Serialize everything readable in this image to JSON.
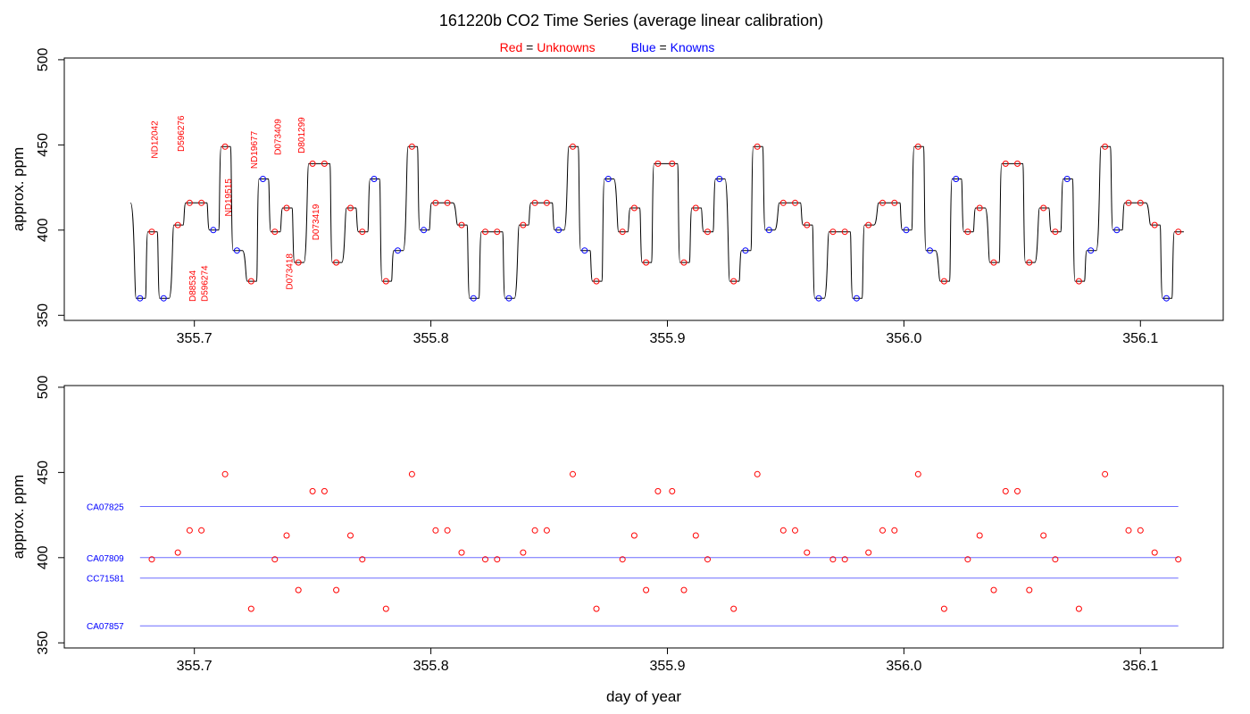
{
  "colors": {
    "unknown": "#ff0000",
    "known": "#0000ff",
    "trace": "#000000",
    "std_line": "#6b6bff"
  },
  "chart_data": [
    {
      "type": "line",
      "title": "161220b   CO2 Time Series (average linear calibration)",
      "legend": {
        "unknowns_color_word": "Red",
        "unknowns_eq": " = ",
        "unknowns_word": "Unknowns",
        "knowns_color_word": "Blue",
        "knowns_eq": " = ",
        "knowns_word": "Knowns",
        "placement": "top-center"
      },
      "ylabel": "approx. ppm",
      "xlim": [
        355.645,
        356.135
      ],
      "ylim": [
        347,
        501
      ],
      "xticks": [
        355.7,
        355.8,
        355.9,
        356.0,
        356.1
      ],
      "xtick_labels": [
        "355.7",
        "355.8",
        "355.9",
        "356.0",
        "356.1"
      ],
      "yticks": [
        350,
        400,
        450,
        500
      ],
      "ytick_labels": [
        "350",
        "400",
        "450",
        "500"
      ],
      "trace_start": 355.673,
      "trace_start_value": 416,
      "segment_width": 0.0052,
      "series": [
        {
          "kind": "unknown",
          "points": [
            {
              "x": 355.682,
              "y": 399
            },
            {
              "x": 355.693,
              "y": 403
            },
            {
              "x": 355.698,
              "y": 416
            },
            {
              "x": 355.703,
              "y": 416
            },
            {
              "x": 355.713,
              "y": 449
            },
            {
              "x": 355.724,
              "y": 370
            },
            {
              "x": 355.734,
              "y": 399
            },
            {
              "x": 355.739,
              "y": 413
            },
            {
              "x": 355.744,
              "y": 381
            },
            {
              "x": 355.75,
              "y": 439
            },
            {
              "x": 355.755,
              "y": 439
            },
            {
              "x": 355.76,
              "y": 381
            },
            {
              "x": 355.766,
              "y": 413
            },
            {
              "x": 355.771,
              "y": 399
            },
            {
              "x": 355.781,
              "y": 370
            },
            {
              "x": 355.792,
              "y": 449
            },
            {
              "x": 355.802,
              "y": 416
            },
            {
              "x": 355.807,
              "y": 416
            },
            {
              "x": 355.813,
              "y": 403
            },
            {
              "x": 355.823,
              "y": 399
            },
            {
              "x": 355.828,
              "y": 399
            },
            {
              "x": 355.839,
              "y": 403
            },
            {
              "x": 355.844,
              "y": 416
            },
            {
              "x": 355.849,
              "y": 416
            },
            {
              "x": 355.86,
              "y": 449
            },
            {
              "x": 355.87,
              "y": 370
            },
            {
              "x": 355.881,
              "y": 399
            },
            {
              "x": 355.886,
              "y": 413
            },
            {
              "x": 355.891,
              "y": 381
            },
            {
              "x": 355.896,
              "y": 439
            },
            {
              "x": 355.902,
              "y": 439
            },
            {
              "x": 355.907,
              "y": 381
            },
            {
              "x": 355.912,
              "y": 413
            },
            {
              "x": 355.917,
              "y": 399
            },
            {
              "x": 355.928,
              "y": 370
            },
            {
              "x": 355.938,
              "y": 449
            },
            {
              "x": 355.949,
              "y": 416
            },
            {
              "x": 355.954,
              "y": 416
            },
            {
              "x": 355.959,
              "y": 403
            },
            {
              "x": 355.97,
              "y": 399
            },
            {
              "x": 355.975,
              "y": 399
            },
            {
              "x": 355.985,
              "y": 403
            },
            {
              "x": 355.991,
              "y": 416
            },
            {
              "x": 355.996,
              "y": 416
            },
            {
              "x": 356.006,
              "y": 449
            },
            {
              "x": 356.017,
              "y": 370
            },
            {
              "x": 356.027,
              "y": 399
            },
            {
              "x": 356.032,
              "y": 413
            },
            {
              "x": 356.038,
              "y": 381
            },
            {
              "x": 356.043,
              "y": 439
            },
            {
              "x": 356.048,
              "y": 439
            },
            {
              "x": 356.053,
              "y": 381
            },
            {
              "x": 356.059,
              "y": 413
            },
            {
              "x": 356.064,
              "y": 399
            },
            {
              "x": 356.074,
              "y": 370
            },
            {
              "x": 356.085,
              "y": 449
            },
            {
              "x": 356.095,
              "y": 416
            },
            {
              "x": 356.1,
              "y": 416
            },
            {
              "x": 356.106,
              "y": 403
            },
            {
              "x": 356.116,
              "y": 399
            }
          ]
        },
        {
          "kind": "known",
          "points": [
            {
              "x": 355.677,
              "y": 360
            },
            {
              "x": 355.687,
              "y": 360
            },
            {
              "x": 355.708,
              "y": 400
            },
            {
              "x": 355.718,
              "y": 388
            },
            {
              "x": 355.729,
              "y": 430
            },
            {
              "x": 355.776,
              "y": 430
            },
            {
              "x": 355.786,
              "y": 388
            },
            {
              "x": 355.797,
              "y": 400
            },
            {
              "x": 355.818,
              "y": 360
            },
            {
              "x": 355.833,
              "y": 360
            },
            {
              "x": 355.854,
              "y": 400
            },
            {
              "x": 355.865,
              "y": 388
            },
            {
              "x": 355.875,
              "y": 430
            },
            {
              "x": 355.922,
              "y": 430
            },
            {
              "x": 355.933,
              "y": 388
            },
            {
              "x": 355.943,
              "y": 400
            },
            {
              "x": 355.964,
              "y": 360
            },
            {
              "x": 355.98,
              "y": 360
            },
            {
              "x": 356.001,
              "y": 400
            },
            {
              "x": 356.011,
              "y": 388
            },
            {
              "x": 356.022,
              "y": 430
            },
            {
              "x": 356.069,
              "y": 430
            },
            {
              "x": 356.079,
              "y": 388
            },
            {
              "x": 356.09,
              "y": 400
            },
            {
              "x": 356.111,
              "y": 360
            }
          ]
        }
      ],
      "annotations": [
        {
          "text": "ND12042",
          "x": 355.683,
          "y": 442,
          "side": "above"
        },
        {
          "text": "D596276",
          "x": 355.694,
          "y": 446,
          "side": "above"
        },
        {
          "text": "D88534",
          "x": 355.699,
          "y": 358,
          "side": "below"
        },
        {
          "text": "D596274",
          "x": 355.704,
          "y": 358,
          "side": "below"
        },
        {
          "text": "ND19515",
          "x": 355.714,
          "y": 408,
          "side": "above"
        },
        {
          "text": "ND19677",
          "x": 355.725,
          "y": 436,
          "side": "above"
        },
        {
          "text": "D073409",
          "x": 355.735,
          "y": 444,
          "side": "above"
        },
        {
          "text": "D073418",
          "x": 355.74,
          "y": 365,
          "side": "below"
        },
        {
          "text": "D801299",
          "x": 355.745,
          "y": 445,
          "side": "above"
        },
        {
          "text": "D073419",
          "x": 355.751,
          "y": 394,
          "side": "below"
        }
      ]
    },
    {
      "type": "scatter",
      "xlabel": "day of year",
      "ylabel": "approx. ppm",
      "xlim": [
        355.645,
        356.135
      ],
      "ylim": [
        347,
        501
      ],
      "xticks": [
        355.7,
        355.8,
        355.9,
        356.0,
        356.1
      ],
      "xtick_labels": [
        "355.7",
        "355.8",
        "355.9",
        "356.0",
        "356.1"
      ],
      "yticks": [
        350,
        400,
        450,
        500
      ],
      "ytick_labels": [
        "350",
        "400",
        "450",
        "500"
      ],
      "standards": [
        {
          "name": "CA07825",
          "value": 430
        },
        {
          "name": "CA07809",
          "value": 400
        },
        {
          "name": "CC71581",
          "value": 388
        },
        {
          "name": "CA07857",
          "value": 360
        }
      ],
      "standards_xrange": [
        355.677,
        356.116
      ],
      "series_ref": "unknowns from top panel"
    }
  ]
}
